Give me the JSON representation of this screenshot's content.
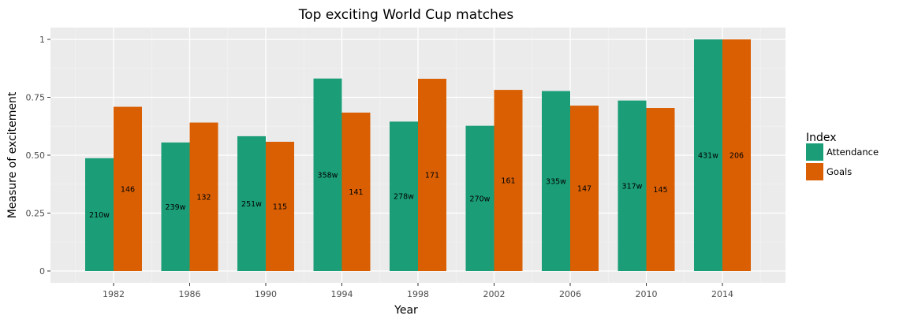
{
  "chart_data": {
    "type": "bar",
    "title": "Top exciting World Cup matches",
    "xlabel": "Year",
    "ylabel": "Measure of excitement",
    "categories": [
      "1982",
      "1986",
      "1990",
      "1994",
      "1998",
      "2002",
      "2006",
      "2010",
      "2014"
    ],
    "ylim": [
      0,
      1.02
    ],
    "yticks": [
      0,
      0.25,
      0.5,
      0.75,
      1
    ],
    "ytick_labels": [
      "0",
      "0.25",
      "0.50",
      "0.75",
      "1"
    ],
    "grid": true,
    "legend": {
      "title": "Index",
      "placement": "right"
    },
    "series": [
      {
        "name": "Attendance",
        "color": "#1b9e77",
        "values": [
          0.487,
          0.555,
          0.582,
          0.831,
          0.645,
          0.627,
          0.777,
          0.736,
          1.0
        ],
        "labels": [
          "210w",
          "239w",
          "251w",
          "358w",
          "278w",
          "270w",
          "335w",
          "317w",
          "431w"
        ]
      },
      {
        "name": "Goals",
        "color": "#d95f02",
        "values": [
          0.709,
          0.641,
          0.558,
          0.684,
          0.83,
          0.782,
          0.714,
          0.704,
          1.0
        ],
        "labels": [
          "146",
          "132",
          "115",
          "141",
          "171",
          "161",
          "147",
          "145",
          "206"
        ]
      }
    ]
  }
}
